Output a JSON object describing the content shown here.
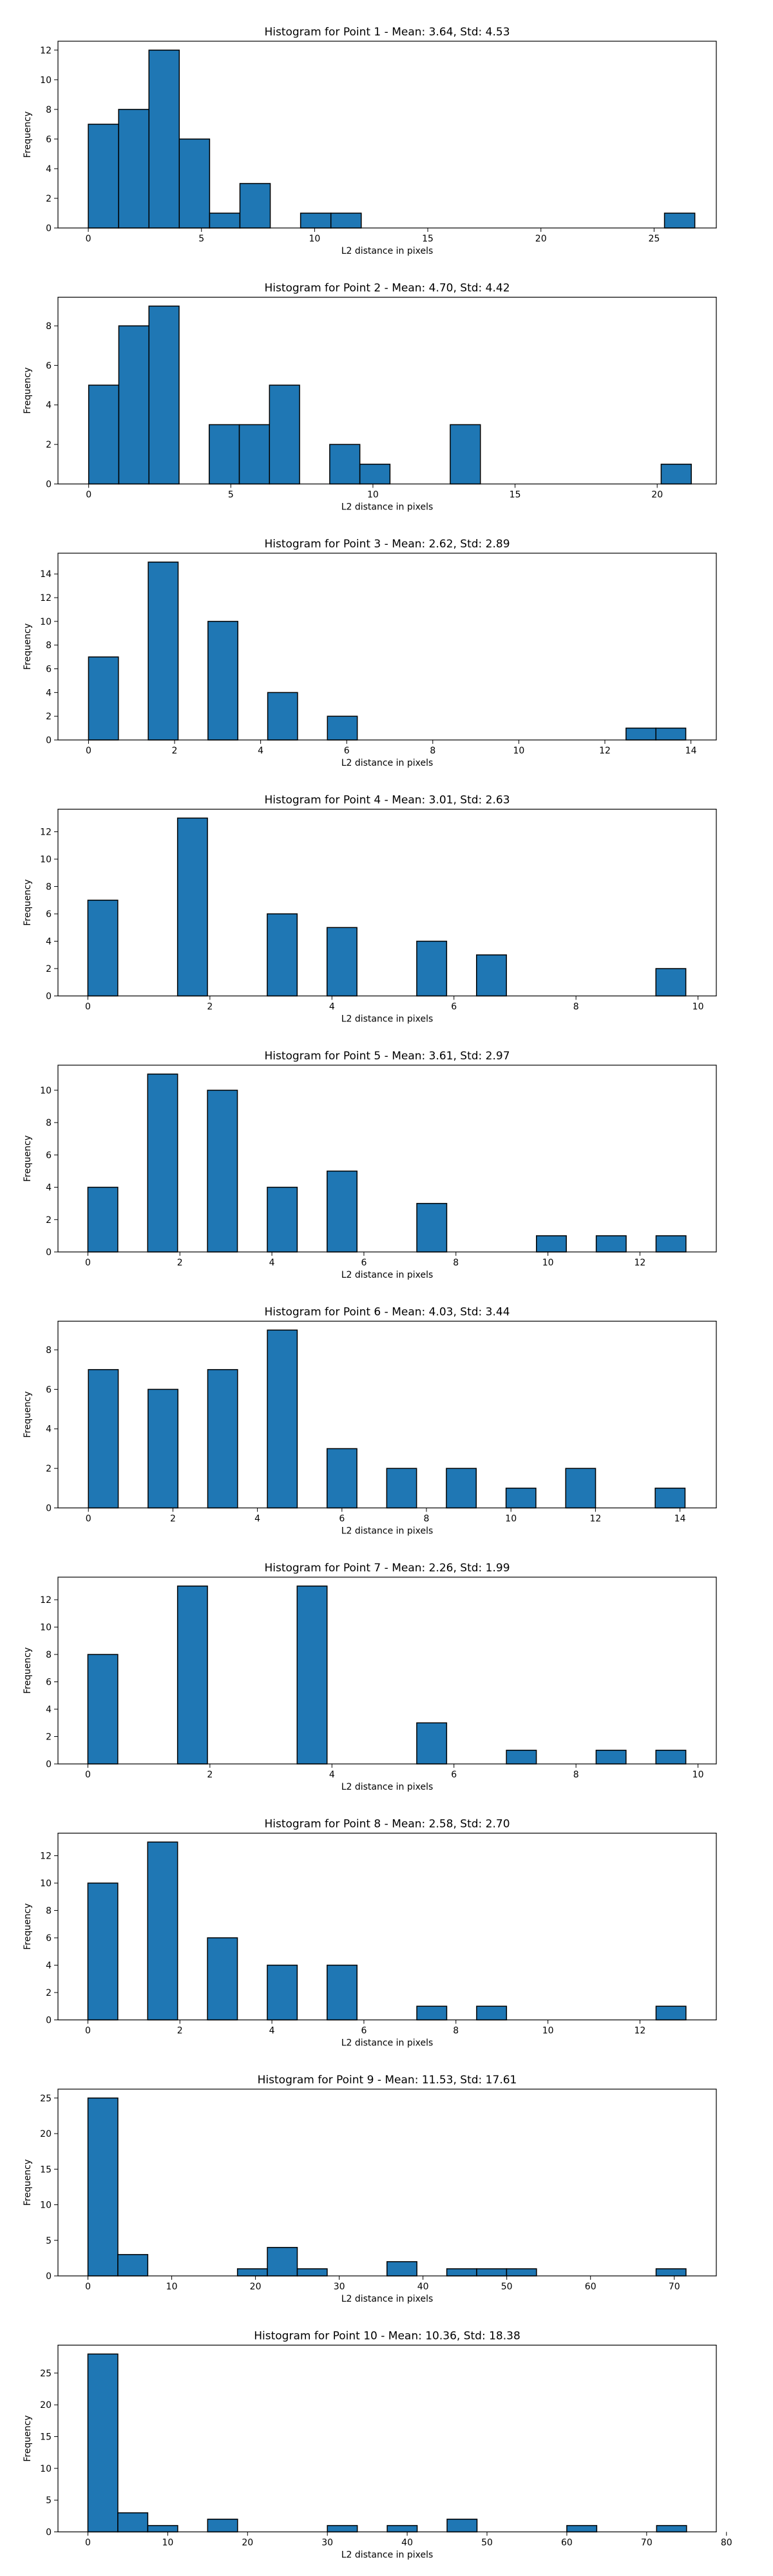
{
  "chart_data": [
    {
      "type": "bar",
      "title": "Histogram for Point 1 - Mean: 3.64, Std: 4.53",
      "xlabel": "L2 distance in pixels",
      "ylabel": "Frequency",
      "xlim": [
        -1.34,
        27.75
      ],
      "ylim": [
        0,
        12.6
      ],
      "xticks": [
        0,
        5,
        10,
        15,
        20,
        25
      ],
      "yticks": [
        0,
        2,
        4,
        6,
        8,
        10,
        12
      ],
      "bin_start": 0.0,
      "bin_width": 1.34,
      "values": [
        7,
        8,
        12,
        6,
        1,
        3,
        0,
        1,
        1,
        0,
        0,
        0,
        0,
        0,
        0,
        0,
        0,
        0,
        0,
        1
      ],
      "bar_color": "#1f77b4",
      "edge_color": "#000000"
    },
    {
      "type": "bar",
      "title": "Histogram for Point 2 - Mean: 4.70, Std: 4.42",
      "xlabel": "L2 distance in pixels",
      "ylabel": "Frequency",
      "xlim": [
        -1.08,
        22.08
      ],
      "ylim": [
        0,
        9.45
      ],
      "xticks": [
        0,
        5,
        10,
        15,
        20
      ],
      "yticks": [
        0,
        2,
        4,
        6,
        8
      ],
      "bin_start": 0.0,
      "bin_width": 1.06,
      "values": [
        5,
        8,
        9,
        0,
        3,
        3,
        5,
        0,
        2,
        1,
        0,
        0,
        3,
        0,
        0,
        0,
        0,
        0,
        0,
        1
      ],
      "bar_color": "#1f77b4",
      "edge_color": "#000000"
    },
    {
      "type": "bar",
      "title": "Histogram for Point 3 - Mean: 2.62, Std: 2.89",
      "xlabel": "L2 distance in pixels",
      "ylabel": "Frequency",
      "xlim": [
        -0.71,
        14.59
      ],
      "ylim": [
        0,
        15.75
      ],
      "xticks": [
        0,
        2,
        4,
        6,
        8,
        10,
        12,
        14
      ],
      "yticks": [
        0,
        2,
        4,
        6,
        8,
        10,
        12,
        14
      ],
      "bin_start": 0.0,
      "bin_width": 0.694,
      "values": [
        7,
        0,
        15,
        0,
        10,
        0,
        4,
        0,
        2,
        0,
        0,
        0,
        0,
        0,
        0,
        0,
        0,
        0,
        1,
        1
      ],
      "bar_color": "#1f77b4",
      "edge_color": "#000000"
    },
    {
      "type": "bar",
      "title": "Histogram for Point 4 - Mean: 3.01, Std: 2.63",
      "xlabel": "L2 distance in pixels",
      "ylabel": "Frequency",
      "xlim": [
        -0.49,
        10.3
      ],
      "ylim": [
        0,
        13.65
      ],
      "xticks": [
        0,
        2,
        4,
        6,
        8,
        10
      ],
      "yticks": [
        0,
        2,
        4,
        6,
        8,
        10,
        12
      ],
      "bin_start": 0.0,
      "bin_width": 0.49,
      "values": [
        7,
        0,
        0,
        13,
        0,
        0,
        6,
        0,
        5,
        0,
        0,
        4,
        0,
        3,
        0,
        0,
        0,
        0,
        0,
        2
      ],
      "bar_color": "#1f77b4",
      "edge_color": "#000000"
    },
    {
      "type": "bar",
      "title": "Histogram for Point 5 - Mean: 3.61, Std: 2.97",
      "xlabel": "L2 distance in pixels",
      "ylabel": "Frequency",
      "xlim": [
        -0.65,
        13.66
      ],
      "ylim": [
        0,
        11.55
      ],
      "xticks": [
        0,
        2,
        4,
        6,
        8,
        10,
        12
      ],
      "yticks": [
        0,
        2,
        4,
        6,
        8,
        10
      ],
      "bin_start": 0.0,
      "bin_width": 0.65,
      "values": [
        4,
        0,
        11,
        0,
        10,
        0,
        4,
        0,
        5,
        0,
        0,
        3,
        0,
        0,
        0,
        1,
        0,
        1,
        0,
        1
      ],
      "bar_color": "#1f77b4",
      "edge_color": "#000000"
    },
    {
      "type": "bar",
      "title": "Histogram for Point 6 - Mean: 4.03, Std: 3.44",
      "xlabel": "L2 distance in pixels",
      "ylabel": "Frequency",
      "xlim": [
        -0.72,
        14.86
      ],
      "ylim": [
        0,
        9.45
      ],
      "xticks": [
        0,
        2,
        4,
        6,
        8,
        10,
        12,
        14
      ],
      "yticks": [
        0,
        2,
        4,
        6,
        8
      ],
      "bin_start": 0.0,
      "bin_width": 0.706,
      "values": [
        7,
        0,
        6,
        0,
        7,
        0,
        9,
        0,
        3,
        0,
        2,
        0,
        2,
        0,
        1,
        0,
        2,
        0,
        0,
        1
      ],
      "bar_color": "#1f77b4",
      "edge_color": "#000000"
    },
    {
      "type": "bar",
      "title": "Histogram for Point 7 - Mean: 2.26, Std: 1.99",
      "xlabel": "L2 distance in pixels",
      "ylabel": "Frequency",
      "xlim": [
        -0.49,
        10.3
      ],
      "ylim": [
        0,
        13.65
      ],
      "xticks": [
        0,
        2,
        4,
        6,
        8,
        10
      ],
      "yticks": [
        0,
        2,
        4,
        6,
        8,
        10,
        12
      ],
      "bin_start": 0.0,
      "bin_width": 0.49,
      "values": [
        8,
        0,
        0,
        13,
        0,
        0,
        0,
        13,
        0,
        0,
        0,
        3,
        0,
        0,
        1,
        0,
        0,
        1,
        0,
        1
      ],
      "bar_color": "#1f77b4",
      "edge_color": "#000000"
    },
    {
      "type": "bar",
      "title": "Histogram for Point 8 - Mean: 2.58, Std: 2.70",
      "xlabel": "L2 distance in pixels",
      "ylabel": "Frequency",
      "xlim": [
        -0.65,
        13.66
      ],
      "ylim": [
        0,
        13.65
      ],
      "xticks": [
        0,
        2,
        4,
        6,
        8,
        10,
        12
      ],
      "yticks": [
        0,
        2,
        4,
        6,
        8,
        10,
        12
      ],
      "bin_start": 0.0,
      "bin_width": 0.65,
      "values": [
        10,
        0,
        13,
        0,
        6,
        0,
        4,
        0,
        4,
        0,
        0,
        1,
        0,
        1,
        0,
        0,
        0,
        0,
        0,
        1
      ],
      "bar_color": "#1f77b4",
      "edge_color": "#000000"
    },
    {
      "type": "bar",
      "title": "Histogram for Point 9 - Mean: 11.53, Std: 17.61",
      "xlabel": "L2 distance in pixels",
      "ylabel": "Frequency",
      "xlim": [
        -3.58,
        75.02
      ],
      "ylim": [
        0,
        26.25
      ],
      "xticks": [
        0,
        10,
        20,
        30,
        40,
        50,
        60,
        70
      ],
      "yticks": [
        0,
        5,
        10,
        15,
        20,
        25
      ],
      "bin_start": 0.0,
      "bin_width": 3.57,
      "values": [
        25,
        3,
        0,
        0,
        0,
        1,
        4,
        1,
        0,
        0,
        2,
        0,
        1,
        1,
        1,
        0,
        0,
        0,
        0,
        1
      ],
      "bar_color": "#1f77b4",
      "edge_color": "#000000"
    },
    {
      "type": "bar",
      "title": "Histogram for Point 10 - Mean: 10.36, Std: 18.38",
      "xlabel": "L2 distance in pixels",
      "ylabel": "Frequency",
      "xlim": [
        -3.75,
        78.73
      ],
      "ylim": [
        0,
        29.4
      ],
      "xticks": [
        0,
        10,
        20,
        30,
        40,
        50,
        60,
        70,
        80
      ],
      "yticks": [
        0,
        5,
        10,
        15,
        20,
        25
      ],
      "bin_start": 0.0,
      "bin_width": 3.75,
      "values": [
        28,
        3,
        1,
        0,
        2,
        0,
        0,
        0,
        1,
        0,
        1,
        0,
        2,
        0,
        0,
        0,
        1,
        0,
        0,
        1
      ],
      "bar_color": "#1f77b4",
      "edge_color": "#000000"
    }
  ]
}
